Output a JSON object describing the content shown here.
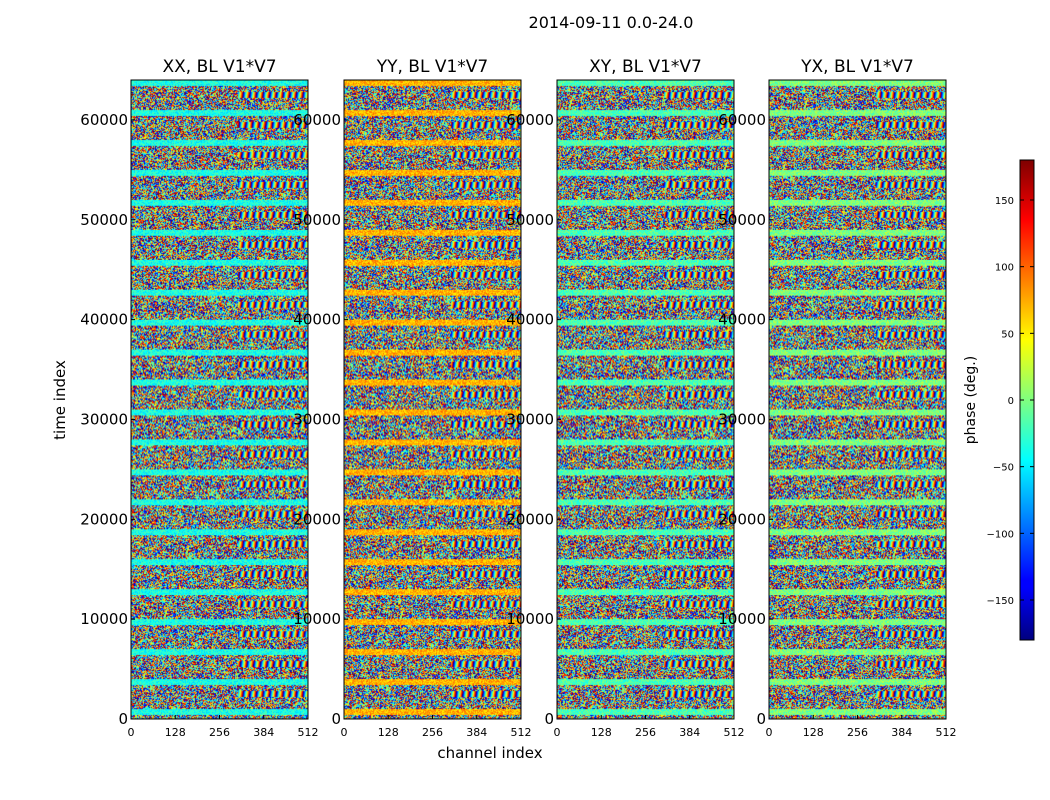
{
  "figure": {
    "suptitle": "2014-09-11 0.0-24.0",
    "xlabel": "channel index",
    "ylabel": "time index"
  },
  "chart_data": {
    "type": "heatmap",
    "title": "2014-09-11 0.0-24.0",
    "xlabel": "channel index",
    "ylabel": "time index",
    "panels": [
      {
        "name": "XX",
        "title": "XX, BL V1*V7"
      },
      {
        "name": "YY",
        "title": "YY, BL V1*V7"
      },
      {
        "name": "XY",
        "title": "XY, BL V1*V7"
      },
      {
        "name": "YX",
        "title": "YX, BL V1*V7"
      }
    ],
    "x_ticks": [
      0,
      128,
      256,
      384,
      512
    ],
    "x_tick_labels": [
      "0",
      "128",
      "256",
      "384",
      "512"
    ],
    "xlim": [
      0,
      512
    ],
    "y_ticks": [
      0,
      10000,
      20000,
      30000,
      40000,
      50000,
      60000
    ],
    "y_tick_labels": [
      "0",
      "10000",
      "20000",
      "30000",
      "40000",
      "50000",
      "60000"
    ],
    "ylim": [
      0,
      64000
    ],
    "colorbar": {
      "label": "phase (deg.)",
      "range": [
        -180,
        180
      ],
      "ticks": [
        -150,
        -100,
        -50,
        0,
        50,
        100,
        150
      ],
      "tick_labels": [
        "−150",
        "−100",
        "−50",
        "0",
        "50",
        "100",
        "150"
      ],
      "colormap": "jet"
    },
    "grid": false
  }
}
